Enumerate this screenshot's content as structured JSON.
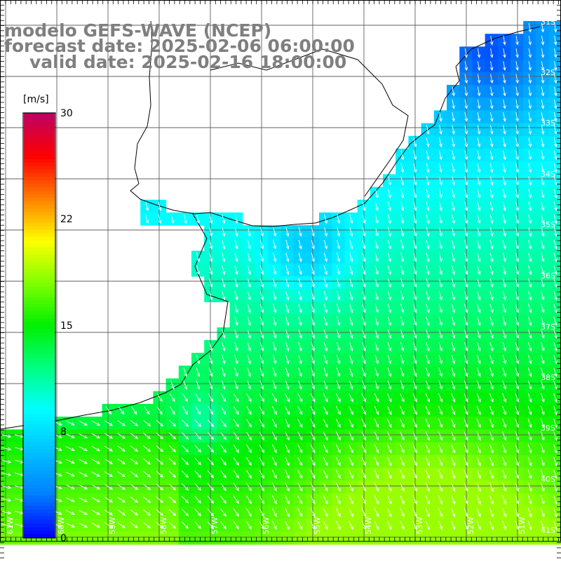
{
  "title": {
    "line1": "modelo GEFS-WAVE (NCEP)",
    "line2": "forecast date: 2025-02-06 06:00:00",
    "line3": "valid date: 2025-02-16 18:00:00"
  },
  "colorbar": {
    "unit": "[m/s]",
    "ticks": [
      "30",
      "22",
      "15",
      "8",
      "0"
    ],
    "colors": [
      "#0000ff",
      "#0080ff",
      "#00c0ff",
      "#00ffff",
      "#00ff80",
      "#00f000",
      "#80ff00",
      "#ffff00",
      "#ff8000",
      "#ff0000",
      "#c00060"
    ]
  },
  "axes": {
    "lat_labels": [
      "31S",
      "32S",
      "33S",
      "34S",
      "35S",
      "36S",
      "37S",
      "38S",
      "39S",
      "40S",
      "41S"
    ],
    "lon_labels": [
      "61W",
      "60W",
      "59W",
      "58W",
      "57W",
      "56W",
      "55W",
      "54W",
      "53W",
      "52W",
      "51W"
    ]
  },
  "field": {
    "quantity": "wind speed",
    "units": "m/s",
    "flow_direction": "southward / south-southeast offshore, eastward along southern band"
  }
}
